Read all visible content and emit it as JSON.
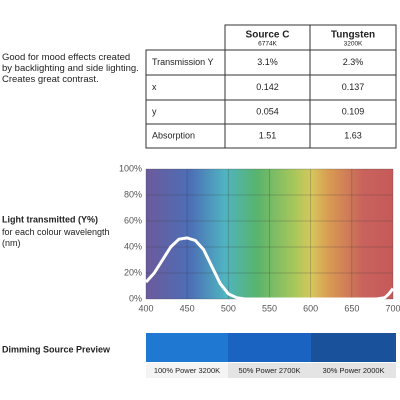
{
  "description": "Good for mood effects created by backlighting and side lighting. Creates great contrast.",
  "table": {
    "columns": [
      {
        "name": "Source C",
        "temp": "6774K"
      },
      {
        "name": "Tungsten",
        "temp": "3200K"
      }
    ],
    "rows": [
      [
        "Transmission Y",
        "3.1%",
        "2.3%"
      ],
      [
        "x",
        "0.142",
        "0.137"
      ],
      [
        "y",
        "0.054",
        "0.109"
      ],
      [
        "Absorption",
        "1.51",
        "1.63"
      ]
    ]
  },
  "chart_data": {
    "type": "line",
    "title": "Light transmitted (Y%)",
    "subtitle": "for each colour wavelength (nm)",
    "x": [
      400,
      410,
      420,
      430,
      440,
      450,
      460,
      470,
      480,
      490,
      500,
      510,
      520,
      550,
      600,
      650,
      680,
      690,
      695,
      700
    ],
    "values": [
      13,
      20,
      30,
      40,
      46,
      47,
      45,
      38,
      25,
      12,
      4,
      1,
      0,
      0,
      0,
      0,
      0,
      1,
      4,
      8
    ],
    "color": "#ffffff",
    "xlim": [
      400,
      700
    ],
    "ylim": [
      0,
      100
    ],
    "xticks": [
      400,
      450,
      500,
      550,
      600,
      650,
      700
    ],
    "yticks": [
      {
        "value": 0,
        "label": "0%"
      },
      {
        "value": 20,
        "label": "20%"
      },
      {
        "value": 40,
        "label": "40%"
      },
      {
        "value": 60,
        "label": "60%"
      },
      {
        "value": 80,
        "label": "80%"
      },
      {
        "value": 100,
        "label": "100%"
      }
    ],
    "grid": true
  },
  "dimming": {
    "title": "Dimming Source Preview",
    "swatches": [
      {
        "label": "100% Power 3200K",
        "color": "#1f78d2"
      },
      {
        "label": "50% Power 2700K",
        "color": "#1b63c0"
      },
      {
        "label": "30% Power 2000K",
        "color": "#1a519b"
      }
    ]
  }
}
